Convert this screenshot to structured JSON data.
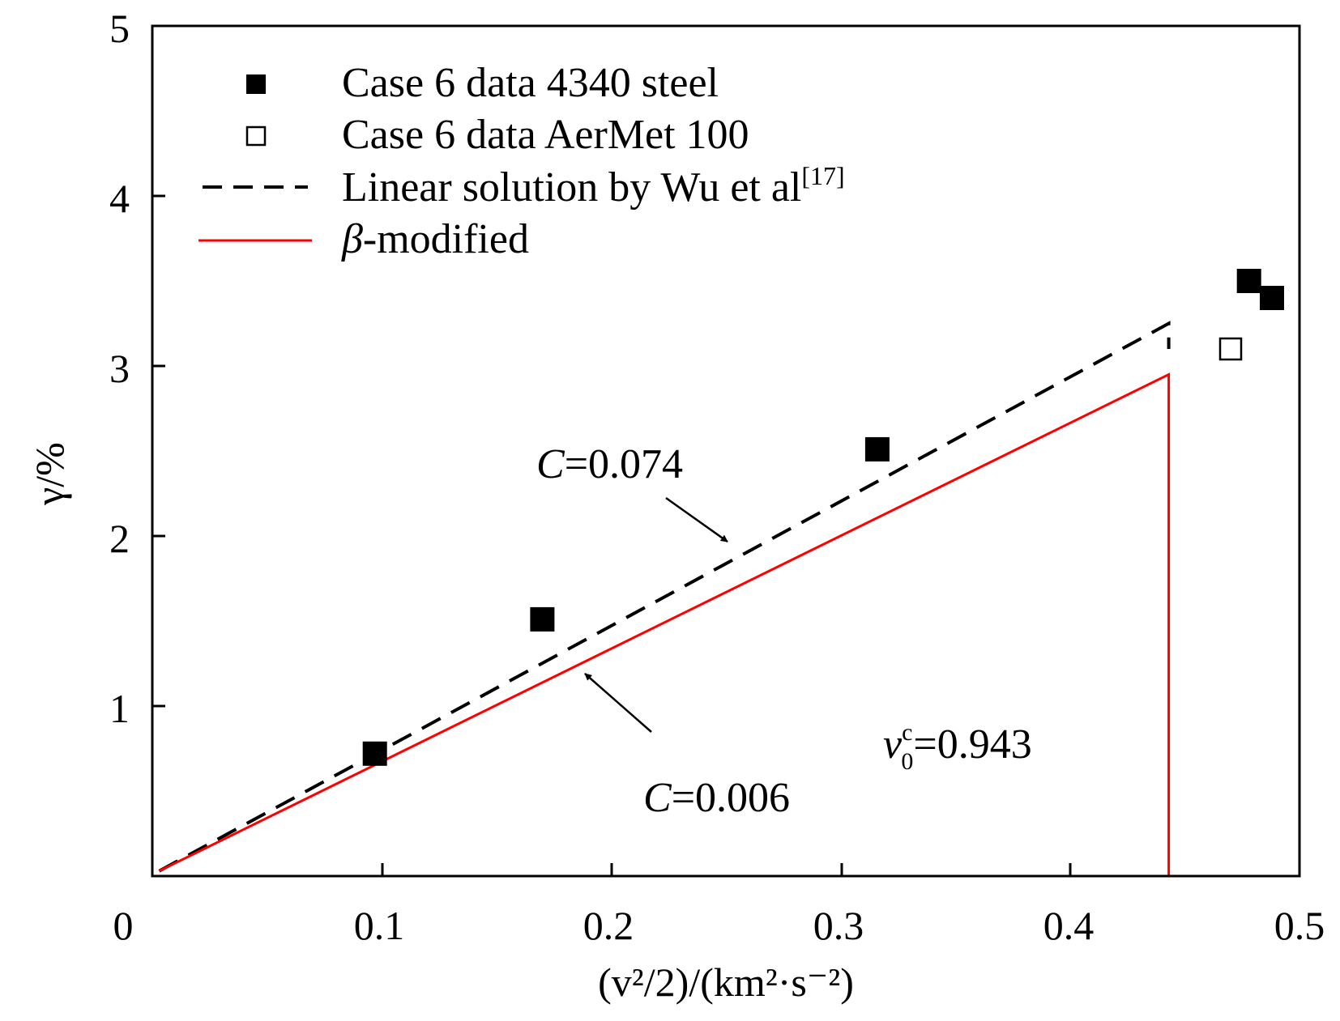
{
  "chart_data": {
    "type": "scatter",
    "xlim": [
      0,
      0.5
    ],
    "ylim": [
      0,
      5
    ],
    "x_ticks": [
      "0",
      "0.1",
      "0.2",
      "0.3",
      "0.4",
      "0.5"
    ],
    "y_ticks": [
      "1",
      "2",
      "3",
      "4",
      "5"
    ],
    "xlabel": "(v²/2)/(km²·s⁻²)",
    "ylabel": "γ/%",
    "grid": false,
    "legend_position": "top-left",
    "series": [
      {
        "name": "Case 6 data 4340 steel",
        "kind": "marker-filled-square",
        "color": "#000000",
        "points": [
          [
            0.097,
            0.72
          ],
          [
            0.17,
            1.51
          ],
          [
            0.316,
            2.51
          ],
          [
            0.478,
            3.5
          ],
          [
            0.488,
            3.4
          ]
        ]
      },
      {
        "name": "Case 6 data AerMet 100",
        "kind": "marker-open-square",
        "color": "#000000",
        "points": [
          [
            0.47,
            3.1
          ]
        ]
      },
      {
        "name": "Linear solution by Wu et al",
        "legend_superscript": "[17]",
        "kind": "dashed-line",
        "color": "#000000",
        "points": [
          [
            0.003,
            0.03
          ],
          [
            0.443,
            3.25
          ],
          [
            0.443,
            3.1
          ]
        ]
      },
      {
        "name": "-modified",
        "legend_prefix": "β",
        "kind": "solid-line",
        "color": "#ff0000",
        "points": [
          [
            0.003,
            0.03
          ],
          [
            0.443,
            2.95
          ],
          [
            0.443,
            0.0
          ]
        ]
      }
    ],
    "annotations": {
      "c_upper": {
        "italic": "C",
        "text": "=0.074"
      },
      "c_lower": {
        "italic": "C",
        "text": "=0.006"
      },
      "v0c": {
        "italic": "v",
        "sup": "c",
        "sub": "0",
        "text": "=0.943"
      }
    }
  }
}
